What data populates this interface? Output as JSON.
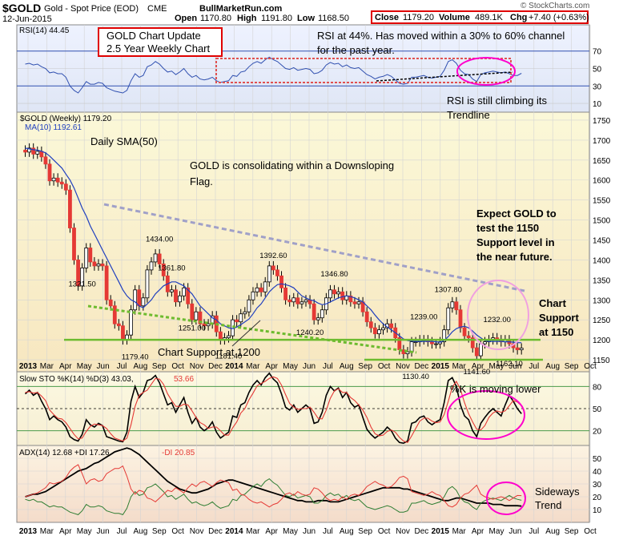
{
  "header": {
    "symbol": "$GOLD",
    "symbol_desc": "Gold - Spot Price (EOD)",
    "exchange": "CME",
    "date": "12-Jun-2015",
    "site": "BullMarketRun.com",
    "open_label": "Open",
    "open": "1170.80",
    "high_label": "High",
    "high": "1191.80",
    "low_label": "Low",
    "low": "1168.50",
    "close_label": "Close",
    "close": "1179.20",
    "volume_label": "Volume",
    "volume": "489.1K",
    "chg_label": "Chg",
    "chg": "+7.40 (+0.63%)",
    "copyright": "© StockCharts.com"
  },
  "colors": {
    "up": "#2e7d32",
    "down": "#e53935",
    "ma": "#1f3fbf",
    "support": "#6dbb2f",
    "annotation_box": "#e00000",
    "highlight": "#ff00cc",
    "resistance": "#a0a0c8"
  },
  "panels": {
    "rsi": {
      "legend": "RSI(14) 44.45",
      "levels": [
        "70",
        "50",
        "30",
        "10"
      ]
    },
    "price": {
      "legend_main": "$GOLD (Weekly) 1179.20",
      "legend_ma": "MA(10) 1192.61",
      "yticks": [
        "1750",
        "1700",
        "1650",
        "1600",
        "1550",
        "1500",
        "1450",
        "1400",
        "1350",
        "1300",
        "1250",
        "1200",
        "1150"
      ]
    },
    "sto": {
      "legend_main": "Slow STO %K(14) %D(3) 43.03,",
      "legend_d": "53.66",
      "levels": [
        "80",
        "50",
        "20"
      ]
    },
    "adx": {
      "legend_main": "ADX(14) 12.68 +DI 17.26",
      "legend_minus": "-DI 20.85",
      "levels": [
        "50",
        "40",
        "30",
        "20",
        "10"
      ]
    }
  },
  "x_axis": {
    "labels": [
      "2013",
      "Mar",
      "Apr",
      "May",
      "Jun",
      "Jul",
      "Aug",
      "Sep",
      "Oct",
      "Nov",
      "Dec",
      "2014",
      "Mar",
      "Apr",
      "May",
      "Jun",
      "Jul",
      "Aug",
      "Sep",
      "Oct",
      "Nov",
      "Dec",
      "2015",
      "Mar",
      "Apr",
      "May",
      "Jun",
      "Jul",
      "Aug",
      "Sep",
      "Oct"
    ]
  },
  "annotations": {
    "title_box": [
      "GOLD Chart Update",
      "2.5 Year Weekly Chart"
    ],
    "rsi_note": [
      "RSI at 44%. Has moved within a 30% to 60% channel",
      "for the past year."
    ],
    "rsi_trend": [
      "RSI is still climbing its",
      "Trendline"
    ],
    "sma": "Daily SMA(50)",
    "flag": [
      "GOLD is consolidating within a Downsloping",
      "Flag."
    ],
    "expect": [
      "Expect GOLD to",
      "test the 1150",
      "Support level in",
      "the near future."
    ],
    "support1150": [
      "Chart",
      "Support",
      "at 1150"
    ],
    "support1200": "Chart Support at 1200",
    "sto_note": "%K is moving lower",
    "adx_note": [
      "Sideways",
      "Trend"
    ]
  },
  "price_labels": [
    {
      "text": "1321.50",
      "price": 1321.5,
      "week": 14
    },
    {
      "text": "1179.40",
      "price": 1179.4,
      "week": 27
    },
    {
      "text": "1434.00",
      "price": 1434.0,
      "week": 33
    },
    {
      "text": "1361.80",
      "price": 1361.8,
      "week": 36
    },
    {
      "text": "1251.00",
      "price": 1251.0,
      "week": 41
    },
    {
      "text": "1181.40",
      "price": 1181.4,
      "week": 50
    },
    {
      "text": "1392.60",
      "price": 1392.6,
      "week": 61
    },
    {
      "text": "1240.20",
      "price": 1240.2,
      "week": 70
    },
    {
      "text": "1346.80",
      "price": 1346.8,
      "week": 76
    },
    {
      "text": "1130.40",
      "price": 1130.4,
      "week": 96
    },
    {
      "text": "1239.00",
      "price": 1239.0,
      "week": 98
    },
    {
      "text": "1307.80",
      "price": 1307.8,
      "week": 104
    },
    {
      "text": "1141.60",
      "price": 1141.6,
      "week": 111
    },
    {
      "text": "1232.00",
      "price": 1232.0,
      "week": 116
    },
    {
      "text": "1162.10",
      "price": 1162.1,
      "week": 119
    }
  ],
  "chart_data": {
    "type": "line",
    "title": "$GOLD Gold - Spot Price (EOD) CME",
    "series": [
      {
        "name": "$GOLD (Weekly)",
        "values": [
          1670,
          1680,
          1665,
          1672,
          1658,
          1640,
          1598,
          1605,
          1595,
          1590,
          1575,
          1480,
          1400,
          1335,
          1380,
          1430,
          1395,
          1385,
          1390,
          1385,
          1300,
          1285,
          1240,
          1235,
          1200,
          1212,
          1275,
          1325,
          1285,
          1305,
          1375,
          1395,
          1415,
          1390,
          1360,
          1320,
          1325,
          1295,
          1310,
          1330,
          1290,
          1250,
          1270,
          1240,
          1235,
          1240,
          1260,
          1220,
          1200,
          1205,
          1210,
          1250,
          1245,
          1265,
          1270,
          1300,
          1320,
          1330,
          1320,
          1345,
          1385,
          1375,
          1360,
          1330,
          1300,
          1295,
          1305,
          1290,
          1295,
          1300,
          1290,
          1250,
          1255,
          1275,
          1305,
          1325,
          1315,
          1320,
          1300,
          1310,
          1295,
          1290,
          1295,
          1270,
          1245,
          1230,
          1215,
          1225,
          1230,
          1240,
          1230,
          1205,
          1175,
          1165,
          1170,
          1195,
          1195,
          1200,
          1200,
          1195,
          1190,
          1190,
          1195,
          1225,
          1280,
          1295,
          1275,
          1230,
          1210,
          1205,
          1180,
          1160,
          1190,
          1195,
          1200,
          1205,
          1200,
          1195,
          1200,
          1190,
          1180,
          1175,
          1179.2
        ]
      },
      {
        "name": "MA(10)",
        "values": [
          1680,
          1678,
          1676,
          1675,
          1672,
          1668,
          1660,
          1650,
          1640,
          1630,
          1615,
          1600,
          1580,
          1555,
          1530,
          1510,
          1485,
          1465,
          1445,
          1425,
          1405,
          1385,
          1365,
          1345,
          1325,
          1310,
          1300,
          1295,
          1285,
          1280,
          1290,
          1300,
          1315,
          1325,
          1335,
          1340,
          1345,
          1345,
          1340,
          1335,
          1325,
          1315,
          1300,
          1285,
          1275,
          1265,
          1255,
          1250,
          1240,
          1235,
          1230,
          1228,
          1232,
          1238,
          1245,
          1252,
          1265,
          1280,
          1290,
          1305,
          1320,
          1330,
          1338,
          1340,
          1338,
          1335,
          1330,
          1320,
          1310,
          1305,
          1300,
          1298,
          1292,
          1288,
          1290,
          1295,
          1300,
          1305,
          1308,
          1310,
          1308,
          1305,
          1300,
          1295,
          1285,
          1275,
          1262,
          1250,
          1240,
          1232,
          1225,
          1218,
          1210,
          1202,
          1198,
          1197,
          1196,
          1196,
          1196,
          1196,
          1196,
          1195,
          1194,
          1198,
          1208,
          1220,
          1228,
          1232,
          1234,
          1230,
          1222,
          1212,
          1205,
          1198,
          1196,
          1196,
          1196,
          1196,
          1195,
          1195,
          1194,
          1193,
          1192.61
        ]
      },
      {
        "name": "RSI(14)",
        "values": [
          55,
          56,
          54,
          55,
          52,
          50,
          45,
          46,
          44,
          44,
          40,
          30,
          25,
          22,
          28,
          35,
          32,
          32,
          34,
          33,
          28,
          26,
          24,
          23,
          22,
          25,
          36,
          44,
          40,
          42,
          52,
          54,
          58,
          55,
          50,
          46,
          47,
          43,
          46,
          50,
          44,
          40,
          42,
          38,
          37,
          38,
          40,
          36,
          34,
          35,
          36,
          42,
          41,
          46,
          47,
          52,
          56,
          58,
          56,
          60,
          63,
          60,
          58,
          54,
          50,
          49,
          51,
          48,
          49,
          50,
          49,
          44,
          45,
          48,
          54,
          57,
          55,
          56,
          52,
          54,
          51,
          50,
          51,
          47,
          43,
          41,
          38,
          40,
          41,
          43,
          41,
          37,
          33,
          32,
          33,
          40,
          40,
          41,
          42,
          40,
          39,
          40,
          41,
          48,
          58,
          60,
          56,
          48,
          44,
          43,
          38,
          35,
          43,
          45,
          46,
          47,
          46,
          45,
          46,
          44,
          42,
          42,
          44.45
        ]
      },
      {
        "name": "%K",
        "values": [
          70,
          75,
          68,
          72,
          60,
          50,
          35,
          40,
          35,
          32,
          25,
          12,
          8,
          6,
          15,
          35,
          28,
          25,
          30,
          27,
          12,
          10,
          8,
          6,
          5,
          18,
          60,
          80,
          65,
          72,
          88,
          90,
          95,
          85,
          70,
          55,
          58,
          45,
          55,
          65,
          45,
          30,
          38,
          25,
          20,
          24,
          32,
          18,
          10,
          14,
          18,
          40,
          38,
          55,
          58,
          72,
          82,
          88,
          82,
          92,
          98,
          90,
          85,
          70,
          52,
          48,
          55,
          45,
          50,
          55,
          50,
          30,
          32,
          45,
          68,
          80,
          74,
          78,
          65,
          72,
          58,
          52,
          55,
          38,
          22,
          15,
          10,
          14,
          18,
          25,
          20,
          10,
          4,
          3,
          6,
          30,
          32,
          38,
          40,
          32,
          28,
          32,
          35,
          58,
          88,
          92,
          80,
          55,
          40,
          35,
          20,
          12,
          30,
          38,
          45,
          50,
          45,
          40,
          55,
          68,
          60,
          50,
          43.03
        ]
      },
      {
        "name": "%D",
        "values": [
          72,
          73,
          71,
          72,
          67,
          61,
          48,
          42,
          37,
          36,
          31,
          23,
          15,
          9,
          10,
          19,
          26,
          29,
          28,
          27,
          23,
          16,
          10,
          8,
          6,
          10,
          28,
          53,
          68,
          72,
          75,
          83,
          91,
          90,
          83,
          70,
          61,
          53,
          53,
          56,
          55,
          47,
          38,
          31,
          28,
          23,
          25,
          25,
          20,
          14,
          14,
          24,
          32,
          44,
          50,
          62,
          71,
          81,
          84,
          87,
          91,
          93,
          91,
          82,
          69,
          57,
          52,
          49,
          50,
          50,
          52,
          45,
          37,
          36,
          48,
          64,
          74,
          77,
          72,
          72,
          65,
          61,
          55,
          48,
          38,
          25,
          16,
          13,
          14,
          19,
          21,
          18,
          11,
          6,
          4,
          13,
          23,
          33,
          37,
          37,
          33,
          31,
          32,
          42,
          60,
          79,
          87,
          76,
          58,
          43,
          32,
          22,
          21,
          27,
          38,
          44,
          47,
          45,
          47,
          54,
          61,
          59,
          53.66
        ]
      },
      {
        "name": "ADX(14)",
        "values": [
          20,
          21,
          22,
          22,
          23,
          24,
          26,
          28,
          30,
          32,
          34,
          36,
          38,
          40,
          41,
          42,
          44,
          46,
          47,
          49,
          51,
          53,
          55,
          56,
          57,
          58,
          57,
          55,
          53,
          50,
          47,
          44,
          41,
          38,
          35,
          32,
          30,
          28,
          26,
          25,
          24,
          23,
          23,
          24,
          25,
          26,
          28,
          30,
          31,
          32,
          33,
          33,
          32,
          31,
          30,
          29,
          28,
          27,
          26,
          25,
          24,
          23,
          22,
          21,
          20,
          19,
          18,
          17,
          17,
          16,
          16,
          16,
          17,
          17,
          17,
          16,
          16,
          16,
          17,
          18,
          19,
          20,
          21,
          22,
          23,
          24,
          25,
          26,
          27,
          27,
          27,
          27,
          27,
          26,
          26,
          25,
          24,
          23,
          22,
          21,
          20,
          19,
          18,
          17,
          17,
          18,
          19,
          19,
          18,
          17,
          16,
          15,
          15,
          15,
          15,
          14,
          14,
          14,
          13,
          13,
          13,
          13,
          12.68
        ]
      },
      {
        "name": "+DI",
        "values": [
          18,
          17,
          18,
          16,
          16,
          14,
          12,
          13,
          12,
          12,
          10,
          8,
          7,
          6,
          9,
          14,
          12,
          12,
          13,
          12,
          9,
          8,
          7,
          7,
          6,
          11,
          20,
          24,
          21,
          22,
          27,
          28,
          30,
          27,
          24,
          20,
          21,
          18,
          20,
          22,
          18,
          15,
          16,
          14,
          13,
          14,
          16,
          13,
          11,
          12,
          13,
          18,
          17,
          21,
          22,
          25,
          28,
          30,
          28,
          32,
          34,
          31,
          29,
          25,
          21,
          20,
          22,
          19,
          20,
          21,
          20,
          15,
          15,
          17,
          21,
          23,
          21,
          22,
          19,
          21,
          18,
          17,
          18,
          15,
          12,
          11,
          10,
          11,
          12,
          13,
          12,
          10,
          8,
          8,
          9,
          15,
          15,
          16,
          17,
          15,
          14,
          15,
          16,
          20,
          26,
          28,
          25,
          19,
          16,
          15,
          12,
          10,
          15,
          17,
          18,
          19,
          18,
          17,
          19,
          21,
          19,
          18,
          17.26
        ]
      },
      {
        "name": "-DI",
        "values": [
          20,
          21,
          22,
          23,
          25,
          27,
          31,
          30,
          31,
          32,
          35,
          40,
          43,
          45,
          38,
          30,
          33,
          34,
          32,
          33,
          38,
          40,
          42,
          42,
          44,
          36,
          26,
          22,
          25,
          24,
          19,
          18,
          16,
          19,
          22,
          25,
          24,
          27,
          25,
          23,
          27,
          30,
          28,
          31,
          32,
          30,
          28,
          31,
          33,
          32,
          31,
          25,
          26,
          22,
          21,
          18,
          16,
          15,
          16,
          14,
          12,
          14,
          15,
          18,
          22,
          23,
          21,
          24,
          22,
          21,
          22,
          27,
          26,
          23,
          19,
          17,
          18,
          17,
          20,
          18,
          21,
          22,
          21,
          24,
          28,
          30,
          32,
          30,
          29,
          27,
          28,
          31,
          35,
          36,
          34,
          24,
          23,
          22,
          21,
          22,
          24,
          22,
          21,
          17,
          13,
          12,
          14,
          19,
          22,
          23,
          26,
          29,
          22,
          20,
          19,
          18,
          19,
          20,
          19,
          17,
          19,
          21,
          20.85
        ]
      }
    ],
    "ylim": [
      1120,
      1770
    ],
    "rsi_ylim": [
      0,
      100
    ],
    "osc_ylim": [
      0,
      100
    ],
    "adx_ylim": [
      0,
      60
    ],
    "sma50_level": "Daily SMA(50)",
    "support_levels": [
      1200,
      1150
    ]
  }
}
